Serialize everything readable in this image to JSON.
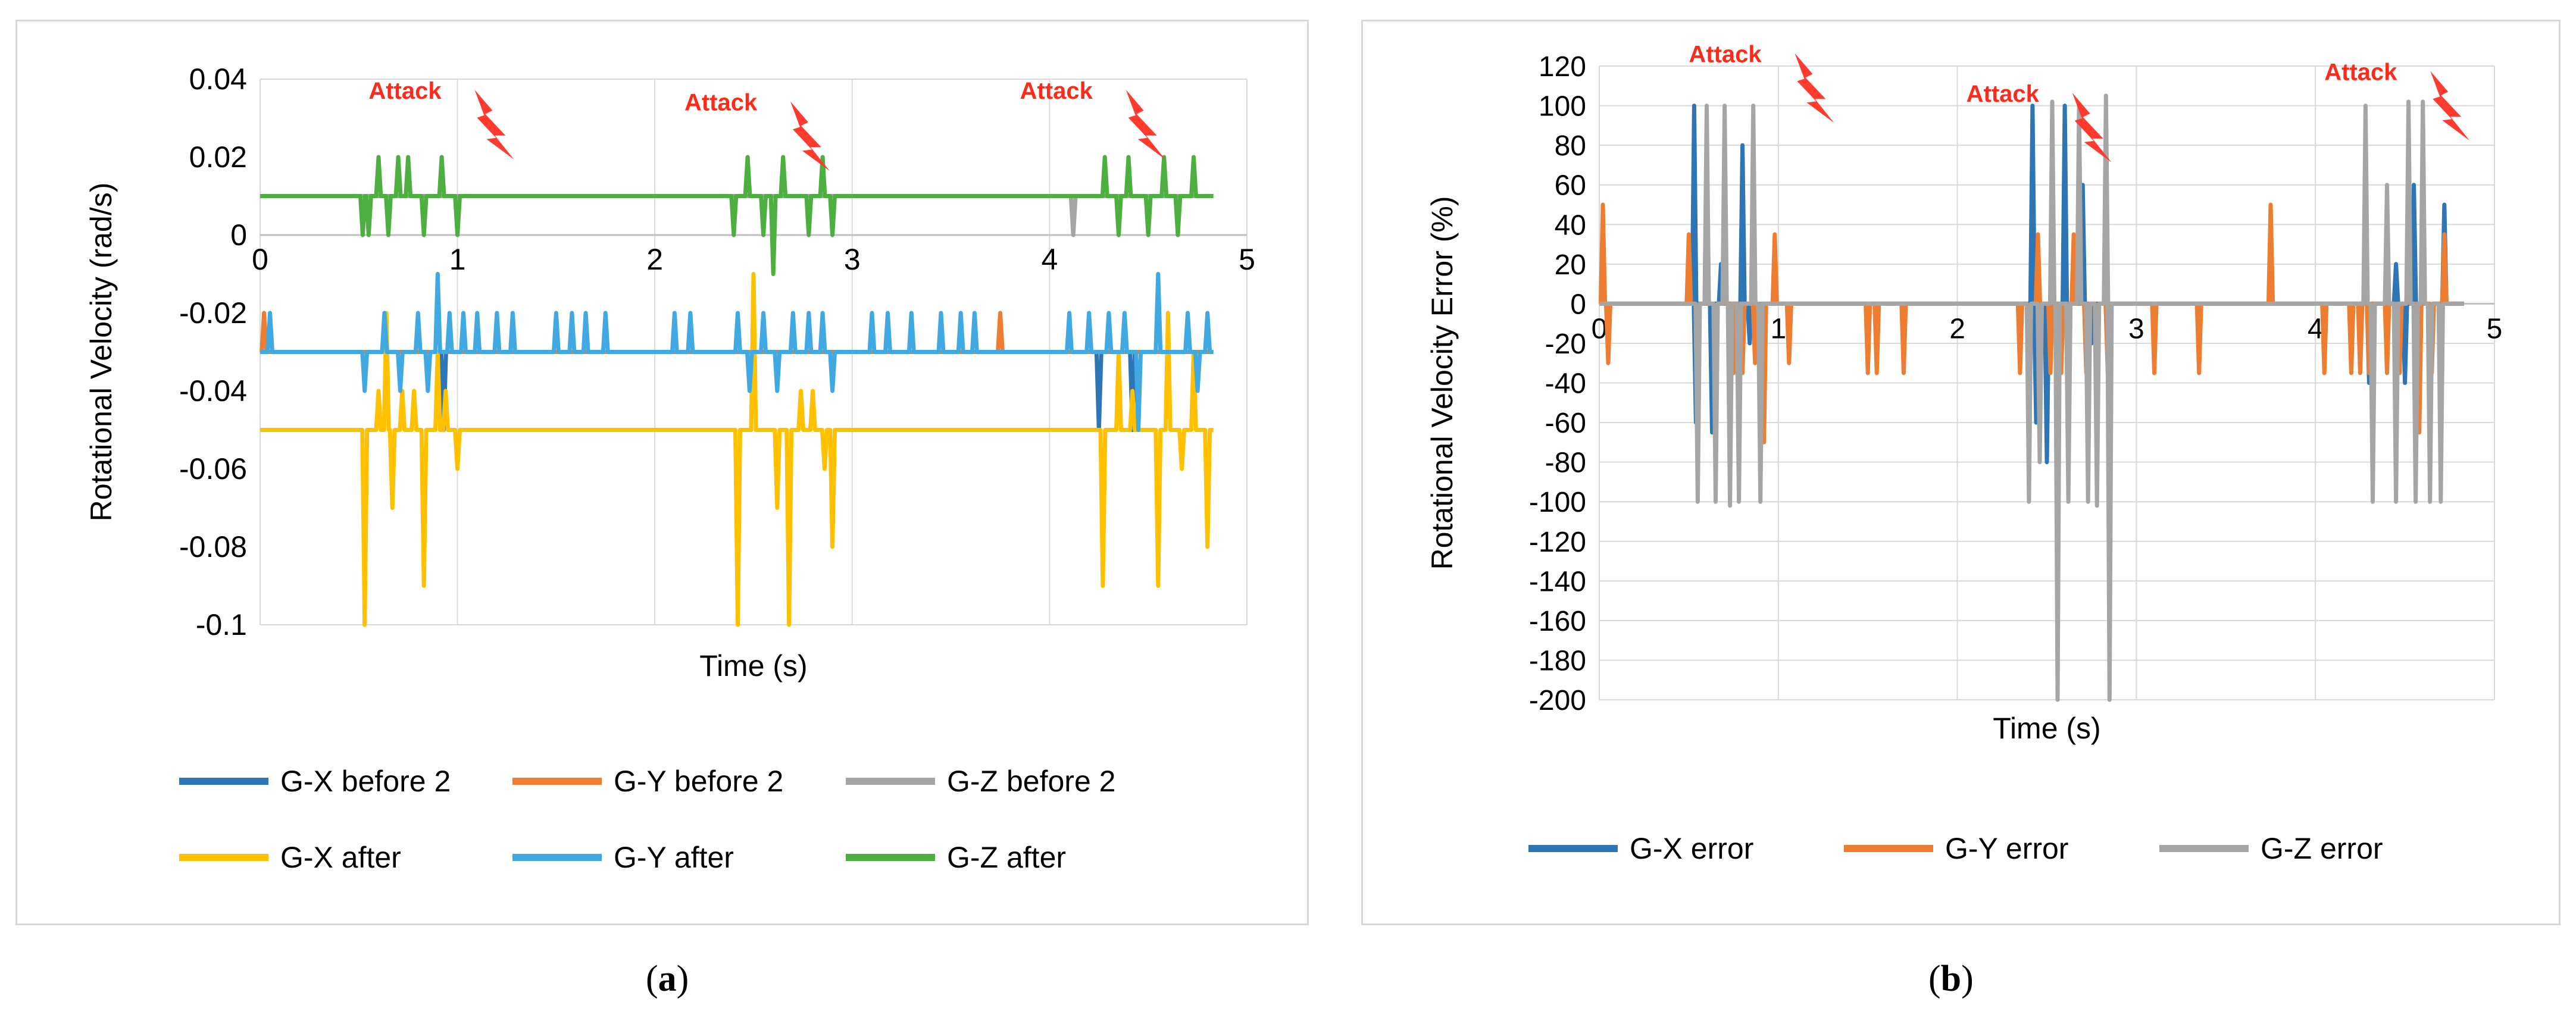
{
  "figure": {
    "caption_a_open": "(",
    "caption_a_letter": "a",
    "caption_a_close": ")",
    "caption_b_open": "(",
    "caption_b_letter": "b",
    "caption_b_close": ")"
  },
  "chart_data": [
    {
      "id": "a",
      "type": "line",
      "title": "",
      "xlabel": "Time (s)",
      "ylabel": "Rotational Velocity (rad/s)",
      "xlim": [
        0,
        5
      ],
      "ylim": [
        -0.1,
        0.04
      ],
      "xticks": [
        0,
        1,
        2,
        3,
        4,
        5
      ],
      "yticks": [
        -0.1,
        -0.08,
        -0.06,
        -0.04,
        -0.02,
        0,
        0.02,
        0.04
      ],
      "ytick_labels": [
        "-0.1",
        "-0.08",
        "-0.06",
        "-0.04",
        "-0.02",
        "0",
        "0.02",
        "0.04"
      ],
      "xtick_labels": [
        "0",
        "1",
        "2",
        "3",
        "4",
        "5"
      ],
      "grid": "vertical",
      "legend_position": "bottom",
      "annotations": [
        {
          "text": "Attack",
          "x": 0.55,
          "y": 0.035
        },
        {
          "text": "Attack",
          "x": 2.15,
          "y": 0.032
        },
        {
          "text": "Attack",
          "x": 3.85,
          "y": 0.035
        }
      ],
      "series": [
        {
          "name": "G-X before 2",
          "color": "#2e75b6",
          "baseline": -0.03,
          "spikes": [
            [
              0.93,
              -0.05
            ],
            [
              4.25,
              -0.05
            ],
            [
              4.42,
              -0.05
            ]
          ]
        },
        {
          "name": "G-Y before 2",
          "color": "#ed7d31",
          "baseline": -0.03,
          "spikes": [
            [
              0.02,
              -0.02
            ],
            [
              3.75,
              -0.02
            ]
          ]
        },
        {
          "name": "G-Z before 2",
          "color": "#a5a5a5",
          "baseline": 0.01,
          "spikes": [
            [
              4.12,
              0
            ]
          ]
        },
        {
          "name": "G-X after",
          "color": "#ffc000",
          "baseline": -0.05,
          "spikes": [
            [
              0.53,
              -0.1
            ],
            [
              0.6,
              -0.04
            ],
            [
              0.64,
              -0.02
            ],
            [
              0.67,
              -0.07
            ],
            [
              0.72,
              -0.04
            ],
            [
              0.78,
              -0.04
            ],
            [
              0.83,
              -0.09
            ],
            [
              0.9,
              -0.03
            ],
            [
              0.94,
              -0.04
            ],
            [
              1.0,
              -0.06
            ],
            [
              2.42,
              -0.1
            ],
            [
              2.5,
              -0.01
            ],
            [
              2.54,
              -0.05
            ],
            [
              2.62,
              -0.07
            ],
            [
              2.68,
              -0.1
            ],
            [
              2.74,
              -0.04
            ],
            [
              2.8,
              -0.04
            ],
            [
              2.86,
              -0.06
            ],
            [
              2.9,
              -0.08
            ],
            [
              4.27,
              -0.09
            ],
            [
              4.35,
              -0.03
            ],
            [
              4.42,
              -0.04
            ],
            [
              4.55,
              -0.09
            ],
            [
              4.6,
              -0.02
            ],
            [
              4.67,
              -0.06
            ],
            [
              4.73,
              -0.03
            ],
            [
              4.8,
              -0.08
            ]
          ]
        },
        {
          "name": "G-Y after",
          "color": "#41a9e1",
          "baseline": -0.03,
          "spikes": [
            [
              0.05,
              -0.02
            ],
            [
              0.53,
              -0.04
            ],
            [
              0.63,
              -0.02
            ],
            [
              0.71,
              -0.04
            ],
            [
              0.8,
              -0.02
            ],
            [
              0.85,
              -0.04
            ],
            [
              0.9,
              -0.01
            ],
            [
              0.96,
              -0.02
            ],
            [
              1.03,
              -0.02
            ],
            [
              1.1,
              -0.02
            ],
            [
              1.2,
              -0.02
            ],
            [
              1.28,
              -0.02
            ],
            [
              1.5,
              -0.02
            ],
            [
              1.58,
              -0.02
            ],
            [
              1.65,
              -0.02
            ],
            [
              1.75,
              -0.02
            ],
            [
              2.1,
              -0.02
            ],
            [
              2.18,
              -0.02
            ],
            [
              2.42,
              -0.02
            ],
            [
              2.48,
              -0.04
            ],
            [
              2.55,
              -0.02
            ],
            [
              2.62,
              -0.04
            ],
            [
              2.7,
              -0.02
            ],
            [
              2.78,
              -0.02
            ],
            [
              2.85,
              -0.02
            ],
            [
              2.9,
              -0.04
            ],
            [
              3.1,
              -0.02
            ],
            [
              3.18,
              -0.02
            ],
            [
              3.3,
              -0.02
            ],
            [
              3.45,
              -0.02
            ],
            [
              3.55,
              -0.02
            ],
            [
              3.62,
              -0.02
            ],
            [
              4.1,
              -0.02
            ],
            [
              4.2,
              -0.02
            ],
            [
              4.3,
              -0.02
            ],
            [
              4.38,
              -0.02
            ],
            [
              4.45,
              -0.05
            ],
            [
              4.55,
              -0.01
            ],
            [
              4.62,
              -0.03
            ],
            [
              4.7,
              -0.02
            ],
            [
              4.75,
              -0.04
            ],
            [
              4.8,
              -0.02
            ]
          ]
        },
        {
          "name": "G-Z after",
          "color": "#4caf3f",
          "baseline": 0.01,
          "spikes": [
            [
              0.52,
              0.0
            ],
            [
              0.55,
              0.0
            ],
            [
              0.6,
              0.02
            ],
            [
              0.65,
              0.0
            ],
            [
              0.7,
              0.02
            ],
            [
              0.75,
              0.02
            ],
            [
              0.83,
              0.0
            ],
            [
              0.92,
              0.02
            ],
            [
              1.0,
              0.0
            ],
            [
              2.4,
              0.0
            ],
            [
              2.47,
              0.02
            ],
            [
              2.55,
              0.0
            ],
            [
              2.6,
              -0.01
            ],
            [
              2.65,
              0.02
            ],
            [
              2.78,
              0.0
            ],
            [
              2.85,
              0.02
            ],
            [
              2.9,
              0.0
            ],
            [
              4.28,
              0.02
            ],
            [
              4.35,
              0.0
            ],
            [
              4.4,
              0.02
            ],
            [
              4.5,
              0.0
            ],
            [
              4.58,
              0.02
            ],
            [
              4.65,
              0.0
            ],
            [
              4.73,
              0.02
            ],
            [
              4.8,
              0.01
            ]
          ]
        }
      ],
      "legend": [
        {
          "name": "G-X before 2",
          "color": "#2e75b6"
        },
        {
          "name": "G-Y before 2",
          "color": "#ed7d31"
        },
        {
          "name": "G-Z before 2",
          "color": "#a5a5a5"
        },
        {
          "name": "G-X after",
          "color": "#ffc000"
        },
        {
          "name": "G-Y after",
          "color": "#41a9e1"
        },
        {
          "name": "G-Z after",
          "color": "#4caf3f"
        }
      ]
    },
    {
      "id": "b",
      "type": "line",
      "title": "",
      "xlabel": "Time (s)",
      "ylabel": "Rotational Velocity Error (%)",
      "xlim": [
        0,
        5
      ],
      "ylim": [
        -200,
        120
      ],
      "xticks": [
        0,
        1,
        2,
        3,
        4,
        5
      ],
      "yticks": [
        -200,
        -180,
        -160,
        -140,
        -120,
        -100,
        -80,
        -60,
        -40,
        -20,
        0,
        20,
        40,
        60,
        80,
        100,
        120
      ],
      "ytick_labels": [
        "-200",
        "-180",
        "-160",
        "-140",
        "-120",
        "-100",
        "-80",
        "-60",
        "-40",
        "-20",
        "0",
        "20",
        "40",
        "60",
        "80",
        "100",
        "120"
      ],
      "xtick_labels": [
        "0",
        "1",
        "2",
        "3",
        "4",
        "5"
      ],
      "grid": "both",
      "legend_position": "bottom",
      "annotations": [
        {
          "text": "Attack",
          "x": 0.5,
          "y": 122
        },
        {
          "text": "Attack",
          "x": 2.05,
          "y": 102
        },
        {
          "text": "Attack",
          "x": 4.05,
          "y": 113
        }
      ],
      "series": [
        {
          "name": "G-X error",
          "color": "#2e75b6",
          "baseline": 0,
          "spikes": [
            [
              0.53,
              100
            ],
            [
              0.54,
              -60
            ],
            [
              0.63,
              -65
            ],
            [
              0.68,
              20
            ],
            [
              0.8,
              80
            ],
            [
              0.84,
              -20
            ],
            [
              0.9,
              -80
            ],
            [
              2.42,
              100
            ],
            [
              2.44,
              -60
            ],
            [
              2.5,
              -80
            ],
            [
              2.6,
              100
            ],
            [
              2.7,
              60
            ],
            [
              2.75,
              -20
            ],
            [
              4.28,
              40
            ],
            [
              4.3,
              -40
            ],
            [
              4.45,
              20
            ],
            [
              4.5,
              -40
            ],
            [
              4.55,
              60
            ],
            [
              4.65,
              -20
            ],
            [
              4.72,
              50
            ]
          ]
        },
        {
          "name": "G-Y error",
          "color": "#ed7d31",
          "baseline": 0,
          "spikes": [
            [
              0.02,
              50
            ],
            [
              0.05,
              -30
            ],
            [
              0.5,
              35
            ],
            [
              0.55,
              -30
            ],
            [
              0.65,
              -35
            ],
            [
              0.75,
              -35
            ],
            [
              0.8,
              -35
            ],
            [
              0.87,
              -30
            ],
            [
              0.92,
              -70
            ],
            [
              0.98,
              35
            ],
            [
              1.06,
              -30
            ],
            [
              1.5,
              -35
            ],
            [
              1.55,
              -35
            ],
            [
              1.7,
              -35
            ],
            [
              2.35,
              -35
            ],
            [
              2.4,
              -35
            ],
            [
              2.45,
              35
            ],
            [
              2.52,
              -35
            ],
            [
              2.58,
              -35
            ],
            [
              2.65,
              35
            ],
            [
              2.72,
              -35
            ],
            [
              2.78,
              -35
            ],
            [
              2.84,
              -35
            ],
            [
              3.1,
              -35
            ],
            [
              3.35,
              -35
            ],
            [
              3.75,
              50
            ],
            [
              4.05,
              -35
            ],
            [
              4.2,
              -35
            ],
            [
              4.25,
              -35
            ],
            [
              4.3,
              -35
            ],
            [
              4.4,
              -35
            ],
            [
              4.47,
              -35
            ],
            [
              4.52,
              35
            ],
            [
              4.58,
              -65
            ],
            [
              4.65,
              -35
            ],
            [
              4.72,
              35
            ]
          ]
        },
        {
          "name": "G-Z error",
          "color": "#a5a5a5",
          "baseline": 0,
          "spikes": [
            [
              0.55,
              -100
            ],
            [
              0.6,
              100
            ],
            [
              0.65,
              -100
            ],
            [
              0.7,
              100
            ],
            [
              0.73,
              -102
            ],
            [
              0.78,
              -100
            ],
            [
              0.86,
              100
            ],
            [
              0.9,
              -100
            ],
            [
              2.4,
              -100
            ],
            [
              2.46,
              -80
            ],
            [
              2.53,
              102
            ],
            [
              2.56,
              -200
            ],
            [
              2.62,
              -100
            ],
            [
              2.68,
              100
            ],
            [
              2.73,
              -100
            ],
            [
              2.78,
              -102
            ],
            [
              2.83,
              105
            ],
            [
              2.85,
              -200
            ],
            [
              4.28,
              100
            ],
            [
              4.32,
              -100
            ],
            [
              4.4,
              60
            ],
            [
              4.45,
              -100
            ],
            [
              4.52,
              102
            ],
            [
              4.56,
              -100
            ],
            [
              4.6,
              102
            ],
            [
              4.64,
              -100
            ],
            [
              4.7,
              -100
            ],
            [
              4.8,
              0
            ]
          ]
        }
      ],
      "legend": [
        {
          "name": "G-X error",
          "color": "#2e75b6"
        },
        {
          "name": "G-Y error",
          "color": "#ed7d31"
        },
        {
          "name": "G-Z error",
          "color": "#a5a5a5"
        }
      ]
    }
  ]
}
